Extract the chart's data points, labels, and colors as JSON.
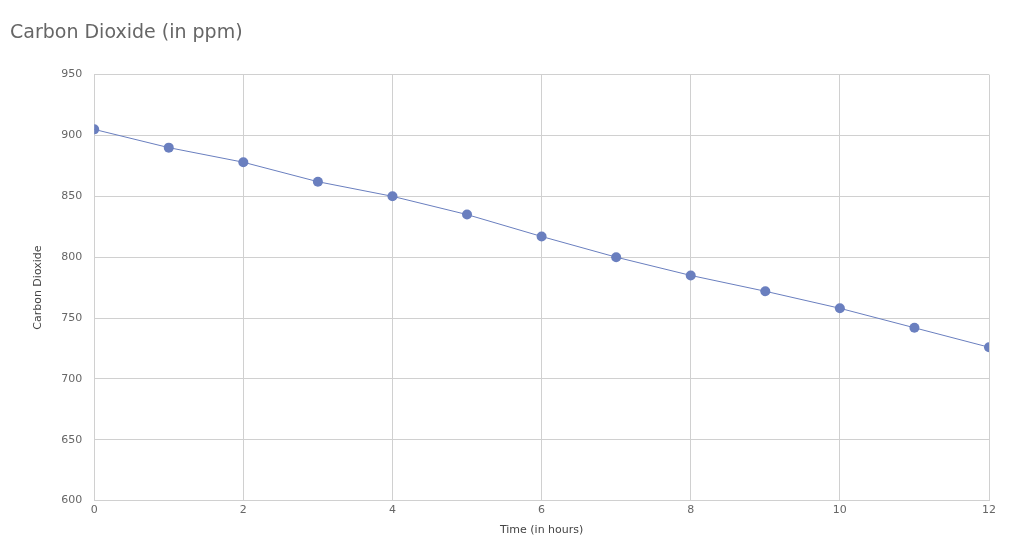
{
  "chart_data": {
    "type": "line",
    "title": "Carbon Dioxide (in ppm)",
    "xlabel": "Time (in hours)",
    "ylabel": "Carbon Dioxide",
    "x": [
      0,
      1,
      2,
      3,
      4,
      5,
      6,
      7,
      8,
      9,
      10,
      11,
      12
    ],
    "series": [
      {
        "color": "#6a7fbf",
        "values": [
          905,
          890,
          878,
          862,
          850,
          835,
          817,
          800,
          785,
          772,
          758,
          742,
          726
        ]
      }
    ],
    "xlim": [
      0,
      12
    ],
    "xticks": [
      0,
      2,
      4,
      6,
      8,
      10,
      12
    ],
    "ylim": [
      600,
      950
    ],
    "yticks": [
      600,
      650,
      700,
      750,
      800,
      850,
      900,
      950
    ],
    "grid": true,
    "legend": false,
    "marker": "circle",
    "line_style": "solid"
  }
}
